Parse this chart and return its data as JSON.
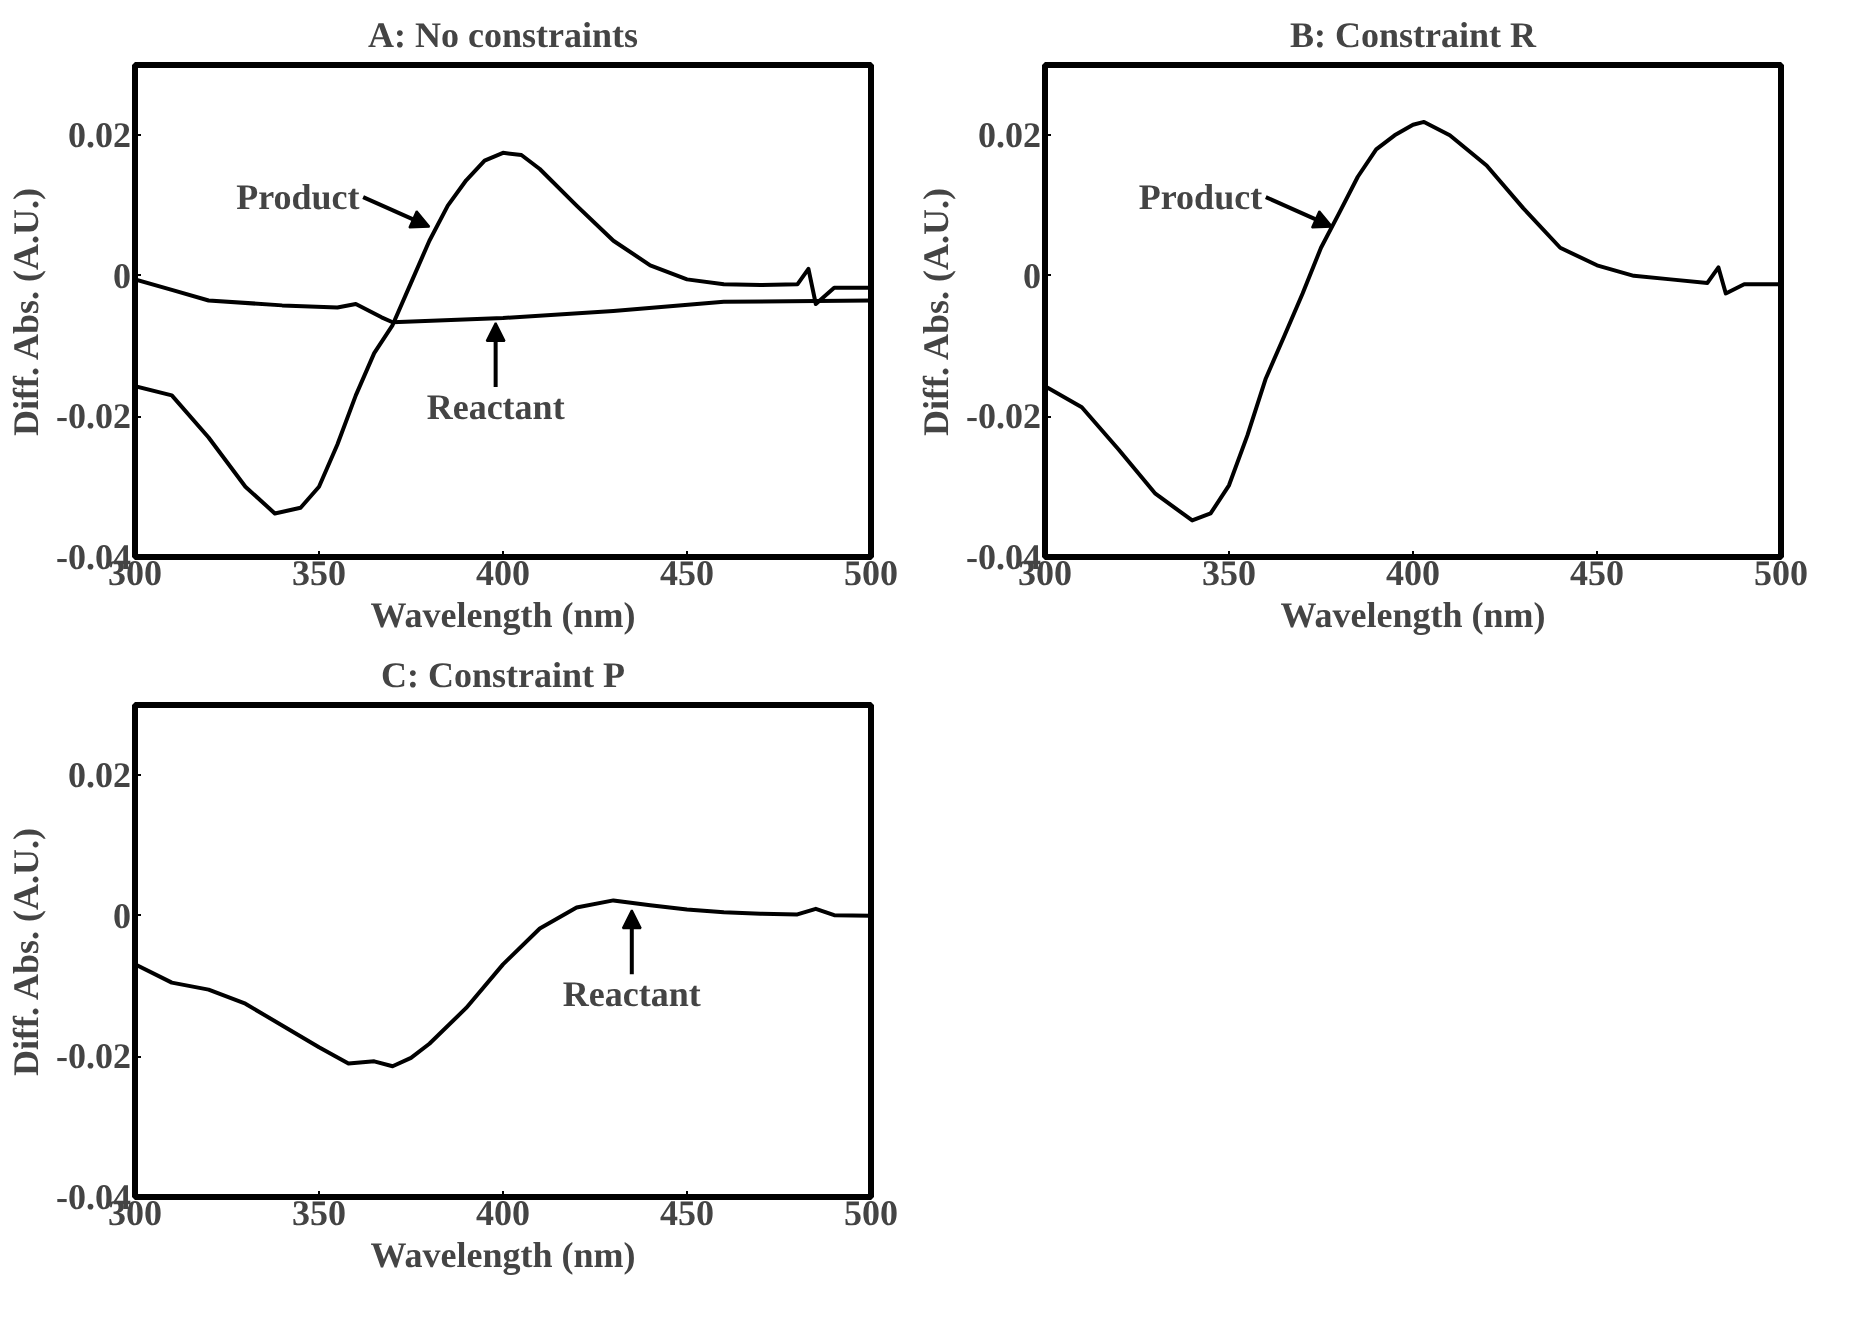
{
  "chart_data": [
    {
      "type": "line",
      "title": "A: No constraints",
      "xlabel": "Wavelength (nm)",
      "ylabel": "Diff. Abs. (A.U.)",
      "xlim": [
        300,
        500
      ],
      "ylim": [
        -0.04,
        0.03
      ],
      "xticks": [
        300,
        350,
        400,
        450,
        500
      ],
      "yticks": [
        -0.04,
        -0.02,
        0,
        0.02
      ],
      "series": [
        {
          "color": "#000000",
          "x": [
            300,
            310,
            320,
            330,
            338,
            345,
            350,
            355,
            360,
            365,
            370,
            375,
            380,
            385,
            390,
            395,
            400,
            405,
            410,
            420,
            430,
            440,
            450,
            460,
            470,
            480,
            483,
            485,
            490,
            500
          ],
          "values": [
            -0.0157,
            -0.017,
            -0.023,
            -0.03,
            -0.0338,
            -0.033,
            -0.03,
            -0.024,
            -0.017,
            -0.011,
            -0.007,
            -0.001,
            0.005,
            0.01,
            0.0136,
            0.0164,
            0.0175,
            0.0172,
            0.0152,
            0.01,
            0.005,
            0.0015,
            -0.0005,
            -0.0012,
            -0.0013,
            -0.0012,
            0.001,
            -0.004,
            -0.0017,
            -0.0017
          ]
        },
        {
          "color": "#000000",
          "x": [
            300,
            310,
            320,
            340,
            355,
            360,
            367,
            370,
            400,
            430,
            460,
            500
          ],
          "values": [
            -0.0005,
            -0.002,
            -0.0035,
            -0.0042,
            -0.0045,
            -0.004,
            -0.0059,
            -0.0066,
            -0.006,
            -0.005,
            -0.0037,
            -0.0035
          ]
        }
      ],
      "annotations": [
        {
          "text": "Product",
          "x": 380,
          "y": 0.007
        },
        {
          "text": "Reactant",
          "x": 398,
          "y": -0.006
        }
      ]
    },
    {
      "type": "line",
      "title": "B: Constraint R",
      "xlabel": "Wavelength (nm)",
      "ylabel": "Diff. Abs. (A.U.)",
      "xlim": [
        300,
        500
      ],
      "ylim": [
        -0.04,
        0.03
      ],
      "xticks": [
        300,
        350,
        400,
        450,
        500
      ],
      "yticks": [
        -0.04,
        -0.02,
        0,
        0.02
      ],
      "series": [
        {
          "color": "#000000",
          "x": [
            300,
            310,
            320,
            330,
            340,
            345,
            350,
            355,
            360,
            365,
            370,
            375,
            380,
            385,
            390,
            395,
            400,
            403,
            410,
            420,
            430,
            440,
            450,
            460,
            470,
            480,
            483,
            485,
            490,
            500
          ],
          "values": [
            -0.0157,
            -0.0187,
            -0.0247,
            -0.031,
            -0.0348,
            -0.0338,
            -0.0298,
            -0.0227,
            -0.0146,
            -0.0086,
            -0.0025,
            0.004,
            0.009,
            0.0141,
            0.018,
            0.02,
            0.0215,
            0.0219,
            0.02,
            0.0157,
            0.0096,
            0.004,
            0.0015,
            0,
            -0.0005,
            -0.001,
            0.0012,
            -0.0025,
            -0.0012,
            -0.0012
          ]
        }
      ],
      "annotations": [
        {
          "text": "Product",
          "x": 378,
          "y": 0.007
        }
      ]
    },
    {
      "type": "line",
      "title": "C: Constraint P",
      "xlabel": "Wavelength (nm)",
      "ylabel": "Diff. Abs. (A.U.)",
      "xlim": [
        300,
        500
      ],
      "ylim": [
        -0.04,
        0.03
      ],
      "xticks": [
        300,
        350,
        400,
        450,
        500
      ],
      "yticks": [
        -0.04,
        -0.02,
        0,
        0.02
      ],
      "series": [
        {
          "color": "#000000",
          "x": [
            300,
            310,
            320,
            330,
            340,
            350,
            358,
            365,
            370,
            375,
            380,
            390,
            400,
            410,
            420,
            430,
            440,
            450,
            460,
            470,
            480,
            485,
            490,
            500
          ],
          "values": [
            -0.0069,
            -0.0095,
            -0.0105,
            -0.0125,
            -0.0156,
            -0.0187,
            -0.021,
            -0.0207,
            -0.0214,
            -0.0202,
            -0.0182,
            -0.0131,
            -0.0069,
            -0.0018,
            0.0012,
            0.0022,
            0.0015,
            0.0009,
            0.0005,
            0.0003,
            0.0002,
            0.001,
            0.0001,
            0
          ]
        }
      ],
      "annotations": [
        {
          "text": "Reactant",
          "x": 435,
          "y": 0.0015
        }
      ]
    }
  ]
}
